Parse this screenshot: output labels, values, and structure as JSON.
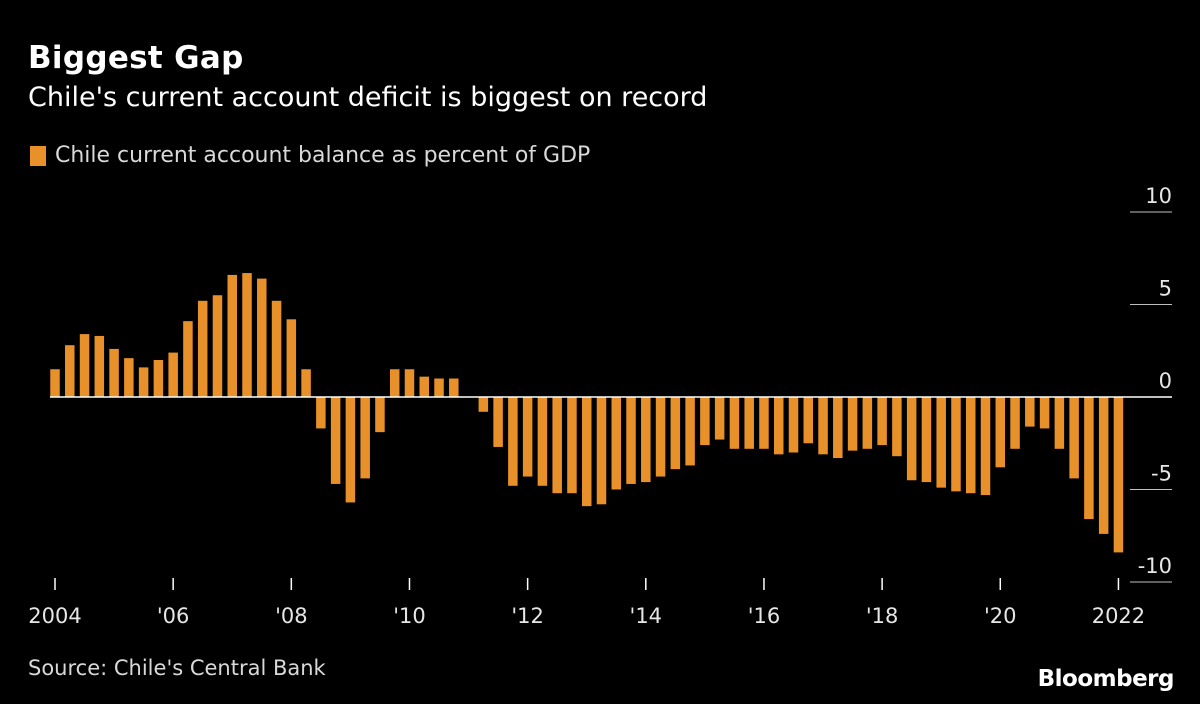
{
  "header": {
    "title": "Biggest Gap",
    "subtitle": "Chile's current account deficit is biggest on record"
  },
  "legend": {
    "label": "Chile current account balance as percent of GDP"
  },
  "footer": {
    "source": "Source: Chile's Central Bank",
    "brand": "Bloomberg"
  },
  "colors": {
    "background": "#000000",
    "bar": "#e8912a",
    "axis": "#ffffff",
    "text": "#ffffff"
  },
  "chart_data": {
    "type": "bar",
    "title": "Biggest Gap",
    "subtitle": "Chile's current account deficit is biggest on record",
    "xlabel": "",
    "ylabel": "",
    "ylim": [
      -10,
      10
    ],
    "grid": false,
    "legend_position": "top-left",
    "y_ticks": [
      {
        "value": 10,
        "label": "10"
      },
      {
        "value": 5,
        "label": "5"
      },
      {
        "value": 0,
        "label": "0"
      },
      {
        "value": -5,
        "label": "-5"
      },
      {
        "value": -10,
        "label": "-10"
      }
    ],
    "x_ticks": [
      {
        "label": "2004",
        "index": 0
      },
      {
        "label": "'06",
        "index": 8
      },
      {
        "label": "'08",
        "index": 16
      },
      {
        "label": "'10",
        "index": 24
      },
      {
        "label": "'12",
        "index": 32
      },
      {
        "label": "'14",
        "index": 40
      },
      {
        "label": "'16",
        "index": 48
      },
      {
        "label": "'18",
        "index": 56
      },
      {
        "label": "'20",
        "index": 64
      },
      {
        "label": "2022",
        "index": 72
      }
    ],
    "series": [
      {
        "name": "Chile current account balance as percent of GDP",
        "values": [
          1.5,
          2.8,
          3.4,
          3.3,
          2.6,
          2.1,
          1.6,
          2.0,
          2.4,
          4.1,
          5.2,
          5.5,
          6.6,
          6.7,
          6.4,
          5.2,
          4.2,
          1.5,
          -1.7,
          -4.7,
          -5.7,
          -4.4,
          -1.9,
          1.5,
          1.5,
          1.1,
          1.0,
          1.0,
          0.0,
          -0.8,
          -2.7,
          -4.8,
          -4.3,
          -4.8,
          -5.2,
          -5.2,
          -5.9,
          -5.8,
          -5.0,
          -4.7,
          -4.6,
          -4.3,
          -3.9,
          -3.7,
          -2.6,
          -2.3,
          -2.8,
          -2.8,
          -2.8,
          -3.1,
          -3.0,
          -2.5,
          -3.1,
          -3.3,
          -2.9,
          -2.8,
          -2.6,
          -3.2,
          -4.5,
          -4.6,
          -4.9,
          -5.1,
          -5.2,
          -5.3,
          -3.8,
          -2.8,
          -1.6,
          -1.7,
          -2.8,
          -4.4,
          -6.6,
          -7.4,
          -8.4
        ]
      }
    ]
  }
}
